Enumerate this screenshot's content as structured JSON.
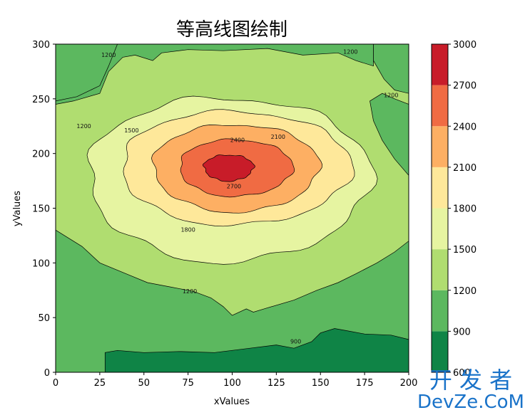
{
  "chart_data": {
    "type": "contourf",
    "title": "等高线图绘制",
    "xlabel": "xValues",
    "ylabel": "yValues",
    "xlim": [
      0,
      200
    ],
    "ylim": [
      0,
      300
    ],
    "x_ticks": [
      "0",
      "25",
      "50",
      "75",
      "100",
      "125",
      "150",
      "175",
      "200"
    ],
    "y_ticks": [
      "0",
      "50",
      "100",
      "150",
      "200",
      "250",
      "300"
    ],
    "levels": [
      600,
      900,
      1200,
      1500,
      1800,
      2100,
      2400,
      2700,
      3000
    ],
    "colorbar_ticks": [
      "600",
      "900",
      "1200",
      "1500",
      "1800",
      "2100",
      "2400",
      "2700",
      "3000"
    ],
    "colormap": [
      "#0f8446",
      "#5cb85f",
      "#b0dd70",
      "#e6f4a1",
      "#fee89a",
      "#fdaf63",
      "#f06b43",
      "#c81c29"
    ],
    "center": [
      102,
      187
    ],
    "contour_rings": [
      {
        "level": 900,
        "note": "band near bottom"
      },
      {
        "level": 1200,
        "rx": 112,
        "ry": 125
      },
      {
        "level": 1500,
        "rx": 80,
        "ry": 75
      },
      {
        "level": 1800,
        "rx": 65,
        "ry": 52
      },
      {
        "level": 2100,
        "rx": 47,
        "ry": 40
      },
      {
        "level": 2400,
        "rx": 32,
        "ry": 26
      },
      {
        "level": 2700,
        "rx": 14,
        "ry": 12
      }
    ],
    "contour_labels": [
      {
        "text": "1200",
        "x": 30,
        "y": 290
      },
      {
        "text": "1200",
        "x": 167,
        "y": 293
      },
      {
        "text": "1200",
        "x": 190,
        "y": 253
      },
      {
        "text": "1200",
        "x": 16,
        "y": 225
      },
      {
        "text": "1200",
        "x": 76,
        "y": 74
      },
      {
        "text": "1500",
        "x": 43,
        "y": 221
      },
      {
        "text": "1800",
        "x": 75,
        "y": 130
      },
      {
        "text": "2100",
        "x": 126,
        "y": 215
      },
      {
        "text": "2400",
        "x": 103,
        "y": 212
      },
      {
        "text": "2700",
        "x": 101,
        "y": 170
      },
      {
        "text": "900",
        "x": 136,
        "y": 28
      }
    ]
  },
  "watermark": {
    "cn": "开 发 者",
    "en": "DevZe.CoM",
    "colors": {
      "text": "#1a73c9"
    }
  }
}
